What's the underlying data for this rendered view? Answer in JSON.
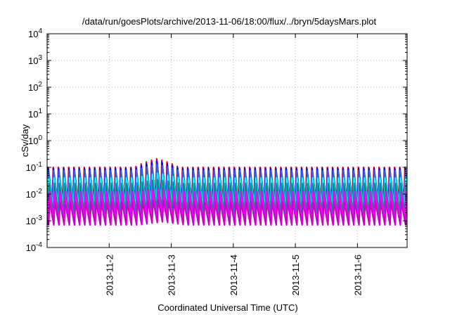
{
  "chart_data": {
    "type": "line",
    "title": "/data/run/goesPlots/archive/2013-11-06/18:00/flux/../bryn/5daysMars.plot",
    "xlabel": "Coordinated Universal Time (UTC)",
    "ylabel": "cSv/day",
    "yscale": "log",
    "ylim": [
      0.0001,
      10000
    ],
    "xlim": [
      1.0,
      6.8
    ],
    "x_unit": "days of November 2013",
    "y_ticks": [
      {
        "base": "10",
        "exp": "-4",
        "value": 0.0001
      },
      {
        "base": "10",
        "exp": "-3",
        "value": 0.001
      },
      {
        "base": "10",
        "exp": "-2",
        "value": 0.01
      },
      {
        "base": "10",
        "exp": "-1",
        "value": 0.1
      },
      {
        "base": "10",
        "exp": "0",
        "value": 1
      },
      {
        "base": "10",
        "exp": "1",
        "value": 10
      },
      {
        "base": "10",
        "exp": "2",
        "value": 100
      },
      {
        "base": "10",
        "exp": "3",
        "value": 1000
      },
      {
        "base": "10",
        "exp": "4",
        "value": 10000
      }
    ],
    "x_ticks": [
      {
        "label": "2013-11-2",
        "value": 2
      },
      {
        "label": "2013-11-3",
        "value": 3
      },
      {
        "label": "2013-11-4",
        "value": 4
      },
      {
        "label": "2013-11-5",
        "value": 5
      },
      {
        "label": "2013-11-6",
        "value": 6
      }
    ],
    "grid": true,
    "legend": "none",
    "cycles_per_day": 12,
    "elevated_interval": [
      2.45,
      3.05
    ],
    "series": [
      {
        "color": "#ff0000",
        "y_peak": 0.1,
        "y_trough": 0.0045,
        "peak_boost": 2.1
      },
      {
        "color": "#0000ff",
        "y_peak": 0.09,
        "y_trough": 0.0042,
        "peak_boost": 1.9
      },
      {
        "color": "#3a5fd9",
        "y_peak": 0.075,
        "y_trough": 0.004,
        "peak_boost": 1.7
      },
      {
        "color": "#00ffff",
        "y_peak": 0.04,
        "y_trough": 0.0028,
        "peak_boost": 1.5
      },
      {
        "color": "#008b8b",
        "y_peak": 0.025,
        "y_trough": 0.0018,
        "peak_boost": 1.4
      },
      {
        "color": "#ff00ff",
        "y_peak": 0.012,
        "y_trough": 0.0008,
        "peak_boost": 1.3
      },
      {
        "color": "#cc00cc",
        "y_peak": 0.005,
        "y_trough": 0.0007,
        "peak_boost": 1.2
      }
    ]
  }
}
